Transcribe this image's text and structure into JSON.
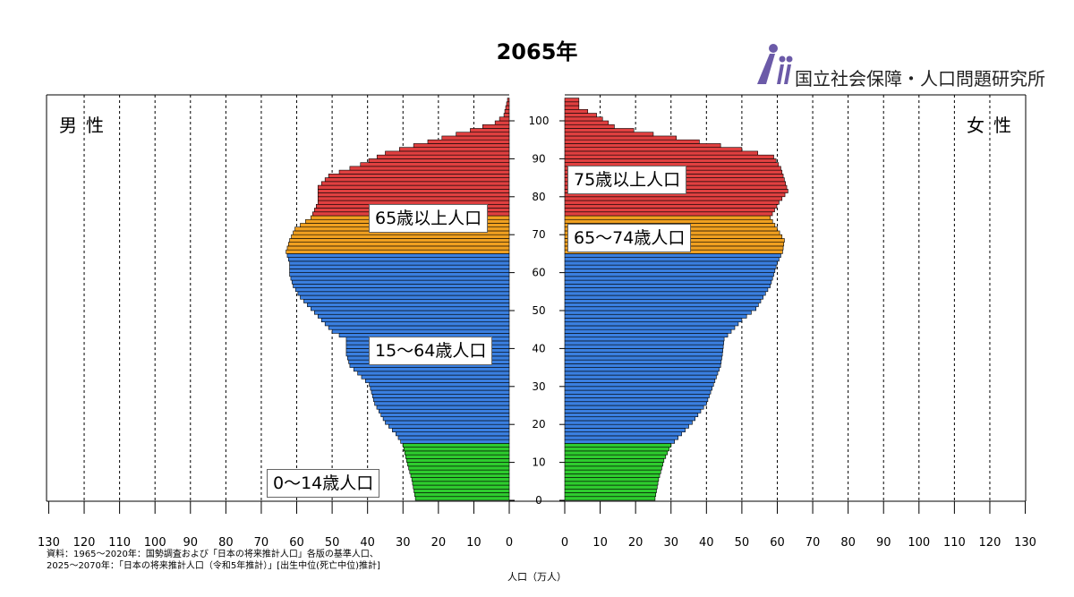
{
  "title": "2065年",
  "logo": {
    "text": "国立社会保障・人口問題研究所",
    "icon": "ipss-figures-logo",
    "color": "#6b5aa8"
  },
  "labels": {
    "male": "男性",
    "female": "女性",
    "age_0_14": "0～14歳人口",
    "age_15_64": "15～64歳人口",
    "age_65_plus_male": "65歳以上人口",
    "age_65_74_female": "65～74歳人口",
    "age_75_plus_female": "75歳以上人口"
  },
  "notes": {
    "line1": "資料：1965～2020年：国勢調査および「日本の将来推計人口」各版の基準人口、",
    "line2": "2025～2070年：「日本の将来推計人口（令和5年推計）」[出生中位(死亡中位)推計]"
  },
  "x_unit": "人口（万人）",
  "colors": {
    "age_0_14": "#2ecc2e",
    "age_15_64": "#3a7fe0",
    "age_65_74": "#f0a020",
    "age_75_plus": "#e04040",
    "outline": "#000000"
  },
  "chart_data": {
    "type": "bar",
    "orientation": "horizontal-population-pyramid",
    "y_ticks": [
      0,
      10,
      20,
      30,
      40,
      50,
      60,
      70,
      80,
      90,
      100
    ],
    "x_ticks": [
      0,
      10,
      20,
      30,
      40,
      50,
      60,
      70,
      80,
      90,
      100,
      110,
      120,
      130
    ],
    "xlim": [
      0,
      130
    ],
    "ylim": [
      0,
      105
    ],
    "grid": "vertical dotted every 10",
    "age_groups": [
      {
        "name": "0～14歳",
        "from": 0,
        "to": 14
      },
      {
        "name": "15～64歳",
        "from": 15,
        "to": 64
      },
      {
        "name": "65～74歳",
        "from": 65,
        "to": 74
      },
      {
        "name": "75歳以上",
        "from": 75,
        "to": 105
      }
    ],
    "male_anchors": [
      [
        0,
        26.5
      ],
      [
        5,
        27.5
      ],
      [
        10,
        29
      ],
      [
        14,
        30
      ],
      [
        17,
        32
      ],
      [
        20,
        35
      ],
      [
        25,
        38
      ],
      [
        30,
        39.5
      ],
      [
        35,
        45
      ],
      [
        38,
        46
      ],
      [
        42,
        46
      ],
      [
        44,
        50
      ],
      [
        47,
        53
      ],
      [
        50,
        56
      ],
      [
        53,
        59
      ],
      [
        56,
        61
      ],
      [
        59,
        62
      ],
      [
        62,
        62
      ],
      [
        65,
        63
      ],
      [
        68,
        62
      ],
      [
        71,
        60.5
      ],
      [
        74,
        56
      ],
      [
        78,
        54
      ],
      [
        82,
        54
      ],
      [
        85,
        51
      ],
      [
        88,
        42
      ],
      [
        91,
        35
      ],
      [
        93,
        27
      ],
      [
        95,
        19
      ],
      [
        97,
        11
      ],
      [
        99,
        4
      ],
      [
        101,
        1.5
      ],
      [
        105,
        0.5
      ]
    ],
    "female_anchors": [
      [
        0,
        25.5
      ],
      [
        5,
        26.5
      ],
      [
        10,
        28
      ],
      [
        14,
        30
      ],
      [
        17,
        33
      ],
      [
        20,
        36
      ],
      [
        25,
        40
      ],
      [
        30,
        42
      ],
      [
        35,
        44
      ],
      [
        38,
        44.5
      ],
      [
        42,
        45
      ],
      [
        44,
        47
      ],
      [
        47,
        50
      ],
      [
        50,
        54
      ],
      [
        53,
        56
      ],
      [
        56,
        58
      ],
      [
        59,
        59
      ],
      [
        62,
        60
      ],
      [
        65,
        61.5
      ],
      [
        68,
        62
      ],
      [
        71,
        60
      ],
      [
        74,
        58
      ],
      [
        78,
        60.5
      ],
      [
        81,
        63
      ],
      [
        84,
        62
      ],
      [
        87,
        61
      ],
      [
        90,
        59
      ],
      [
        92,
        50
      ],
      [
        94,
        38
      ],
      [
        96,
        25
      ],
      [
        98,
        14
      ],
      [
        101,
        9
      ],
      [
        103,
        4
      ],
      [
        105,
        4
      ]
    ]
  }
}
